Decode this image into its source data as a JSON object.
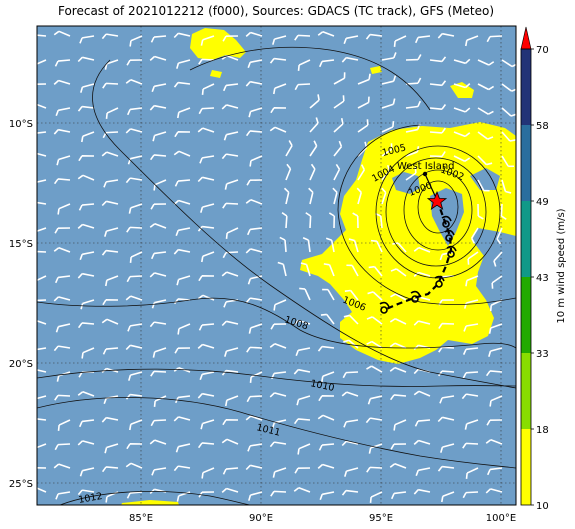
{
  "title": "Forecast of 2021012212 (f000), Sources: GDACS (TC track), GFS (Meteo)",
  "axes": {
    "lon_ticks": [
      "85°E",
      "90°E",
      "95°E",
      "100°E"
    ],
    "lat_ticks": [
      "10°S",
      "15°S",
      "20°S",
      "25°S"
    ]
  },
  "place_label": "West Island",
  "isobar_labels": [
    "1000",
    "1002",
    "1004",
    "1005",
    "1006",
    "1008",
    "1010",
    "1011",
    "1012"
  ],
  "colorbar": {
    "label": "10 m wind speed (m/s)",
    "ticks": [
      "10",
      "18",
      "33",
      "43",
      "49",
      "58",
      "70"
    ],
    "colors": {
      "10": "#ffff00",
      "18": "#88dd00",
      "33": "#22aa00",
      "43": "#119988",
      "49": "#2a6e9e",
      "58": "#223377",
      "70": "#ff0000"
    }
  },
  "colors": {
    "ocean": "#6e9ec8",
    "land_high_wind": "#ffff00",
    "storm_marker": "#ff0000"
  }
}
